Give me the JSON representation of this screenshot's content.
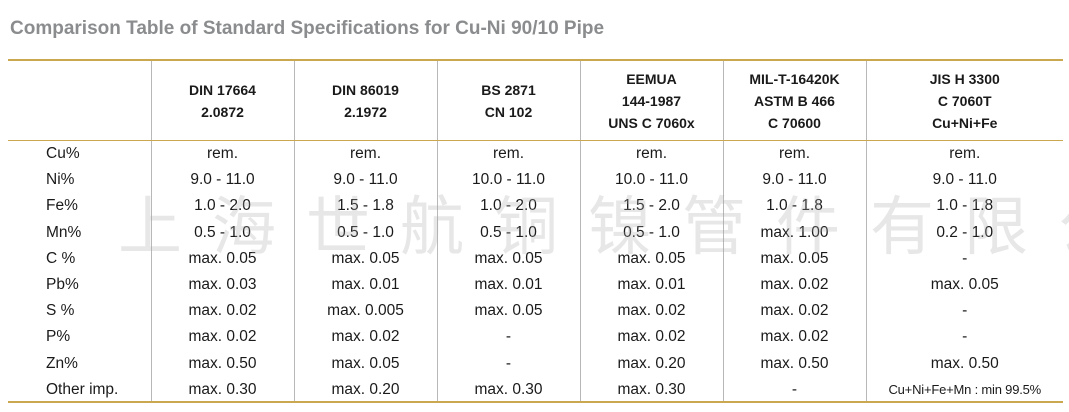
{
  "title": "Comparison Table of Standard Specifications for Cu-Ni 90/10 Pipe",
  "columns": [
    {
      "lines": [
        "DIN 17664",
        "2.0872"
      ]
    },
    {
      "lines": [
        "DIN 86019",
        "2.1972"
      ]
    },
    {
      "lines": [
        "BS 2871",
        "CN 102"
      ]
    },
    {
      "lines": [
        "EEMUA",
        "144-1987",
        "UNS C 7060x"
      ]
    },
    {
      "lines": [
        "MIL-T-16420K",
        "ASTM B 466",
        "C 70600"
      ]
    },
    {
      "lines": [
        "JIS H 3300",
        "C 7060T",
        "Cu+Ni+Fe"
      ]
    }
  ],
  "rows": [
    {
      "label": "Cu%",
      "values": [
        "rem.",
        "rem.",
        "rem.",
        "rem.",
        "rem.",
        "rem."
      ]
    },
    {
      "label": "Ni%",
      "values": [
        "9.0 - 11.0",
        "9.0 - 11.0",
        "10.0 - 11.0",
        "10.0 - 11.0",
        "9.0 - 11.0",
        "9.0 - 11.0"
      ]
    },
    {
      "label": "Fe%",
      "values": [
        "1.0 - 2.0",
        "1.5 - 1.8",
        "1.0 - 2.0",
        "1.5 - 2.0",
        "1.0 - 1.8",
        "1.0 - 1.8"
      ]
    },
    {
      "label": "Mn%",
      "values": [
        "0.5 - 1.0",
        "0.5 - 1.0",
        "0.5 - 1.0",
        "0.5 - 1.0",
        "max. 1.00",
        "0.2 - 1.0"
      ]
    },
    {
      "label": "C %",
      "values": [
        "max. 0.05",
        "max. 0.05",
        "max. 0.05",
        "max. 0.05",
        "max. 0.05",
        "-"
      ]
    },
    {
      "label": "Pb%",
      "values": [
        "max. 0.03",
        "max. 0.01",
        "max. 0.01",
        "max. 0.01",
        "max. 0.02",
        "max. 0.05"
      ]
    },
    {
      "label": "S %",
      "values": [
        "max. 0.02",
        "max. 0.005",
        "max. 0.05",
        "max. 0.02",
        "max. 0.02",
        "-"
      ]
    },
    {
      "label": "P%",
      "values": [
        "max. 0.02",
        "max. 0.02",
        "-",
        "max. 0.02",
        "max. 0.02",
        "-"
      ]
    },
    {
      "label": "Zn%",
      "values": [
        "max. 0.50",
        "max. 0.05",
        "-",
        "max. 0.20",
        "max. 0.50",
        "max. 0.50"
      ]
    },
    {
      "label": "Other imp.",
      "values": [
        "max. 0.30",
        "max. 0.20",
        "max. 0.30",
        "max. 0.30",
        "-",
        "Cu+Ni+Fe+Mn : min 99.5%"
      ]
    }
  ],
  "watermark": "上海世航铜镍管件有限公司"
}
